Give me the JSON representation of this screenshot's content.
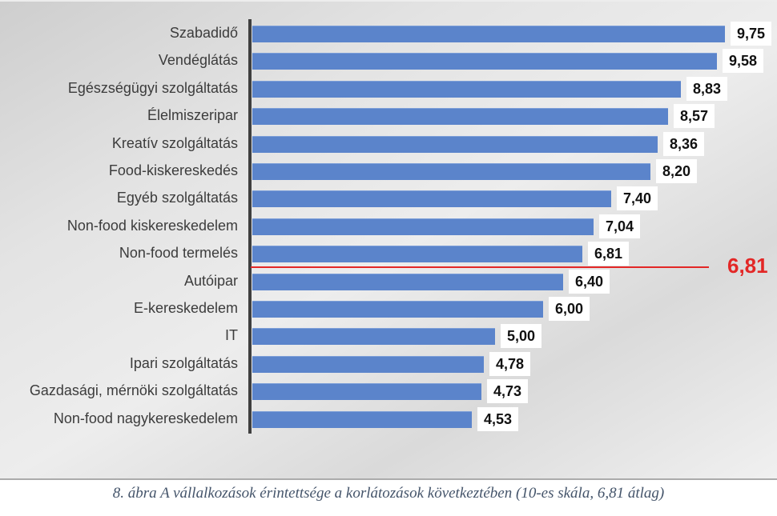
{
  "caption": "8. ábra A vállalkozások érintettsége a korlátozások következtében (10-es skála, 6,81 átlag)",
  "chart_data": {
    "type": "bar",
    "orientation": "horizontal",
    "title": "",
    "xlabel": "",
    "ylabel": "",
    "xlim": [
      0,
      10
    ],
    "grid": false,
    "legend": false,
    "categories": [
      "Szabadidő",
      "Vendéglátás",
      "Egészségügyi szolgáltatás",
      "Élelmiszeripar",
      "Kreatív szolgáltatás",
      "Food-kiskereskedés",
      "Egyéb szolgáltatás",
      "Non-food kiskereskedelem",
      "Non-food termelés",
      "Autóipar",
      "E-kereskedelem",
      "IT",
      "Ipari szolgáltatás",
      "Gazdasági, mérnöki szolgáltatás",
      "Non-food nagykereskedelem"
    ],
    "values": [
      9.75,
      9.58,
      8.83,
      8.57,
      8.36,
      8.2,
      7.4,
      7.04,
      6.81,
      6.4,
      6.0,
      5.0,
      4.78,
      4.73,
      4.53
    ],
    "value_labels": [
      "9,75",
      "9,58",
      "8,83",
      "8,57",
      "8,36",
      "8,20",
      "7,40",
      "7,04",
      "6,81",
      "6,40",
      "6,00",
      "5,00",
      "4,78",
      "4,73",
      "4,53"
    ],
    "average": 6.81,
    "average_label": "6,81",
    "bar_color": "#5b84cb",
    "average_line_color": "#e32726"
  }
}
